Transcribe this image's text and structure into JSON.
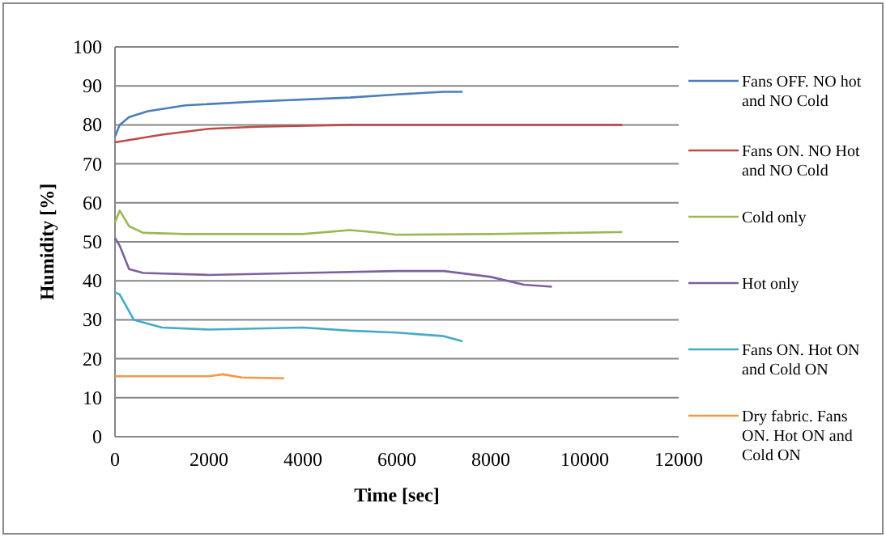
{
  "chart_data": {
    "type": "line",
    "xlabel": "Time [sec]",
    "ylabel": "Humidity [%]",
    "xlim": [
      0,
      12000
    ],
    "ylim": [
      0,
      100
    ],
    "xticks": [
      0,
      2000,
      4000,
      6000,
      8000,
      10000,
      12000
    ],
    "yticks": [
      0,
      10,
      20,
      30,
      40,
      50,
      60,
      70,
      80,
      90,
      100
    ],
    "grid": "y",
    "legend": "right",
    "marker": "none",
    "line_style": "solid",
    "series": [
      {
        "name": "Fans OFF. NO hot and NO Cold",
        "color": "#4a7ebb",
        "x": [
          0,
          100,
          300,
          700,
          1500,
          3000,
          5000,
          6000,
          7000,
          7400
        ],
        "values": [
          77,
          80,
          82,
          83.5,
          85,
          86,
          87,
          87.8,
          88.5,
          88.5
        ]
      },
      {
        "name": "Fans ON. NO Hot and NO Cold",
        "color": "#be4b48",
        "x": [
          0,
          1000,
          2000,
          3000,
          5000,
          8000,
          10800
        ],
        "values": [
          75.5,
          77.5,
          79,
          79.5,
          80,
          80,
          80
        ]
      },
      {
        "name": "Cold only",
        "color": "#98b954",
        "x": [
          0,
          100,
          300,
          600,
          1500,
          4000,
          5000,
          5500,
          6000,
          8000,
          10800
        ],
        "values": [
          55,
          58,
          54,
          52.3,
          52,
          52,
          53,
          52.5,
          51.8,
          52,
          52.5
        ]
      },
      {
        "name": "Hot only",
        "color": "#7d60a0",
        "x": [
          0,
          100,
          300,
          600,
          2000,
          4000,
          6000,
          7000,
          8000,
          8700,
          9300
        ],
        "values": [
          51,
          49,
          43,
          42,
          41.5,
          42,
          42.5,
          42.5,
          41,
          39,
          38.5
        ]
      },
      {
        "name": "Fans ON. Hot ON and Cold ON",
        "color": "#46aac5",
        "x": [
          0,
          100,
          400,
          1000,
          2000,
          4000,
          5000,
          6000,
          7000,
          7400
        ],
        "values": [
          37,
          36.5,
          30,
          28,
          27.5,
          28,
          27.2,
          26.7,
          25.8,
          24.5
        ]
      },
      {
        "name": "Dry fabric. Fans ON. Hot ON and Cold ON",
        "color": "#f79646",
        "x": [
          0,
          2000,
          2300,
          2700,
          3600
        ],
        "values": [
          15.5,
          15.5,
          16,
          15.2,
          15
        ]
      }
    ]
  }
}
